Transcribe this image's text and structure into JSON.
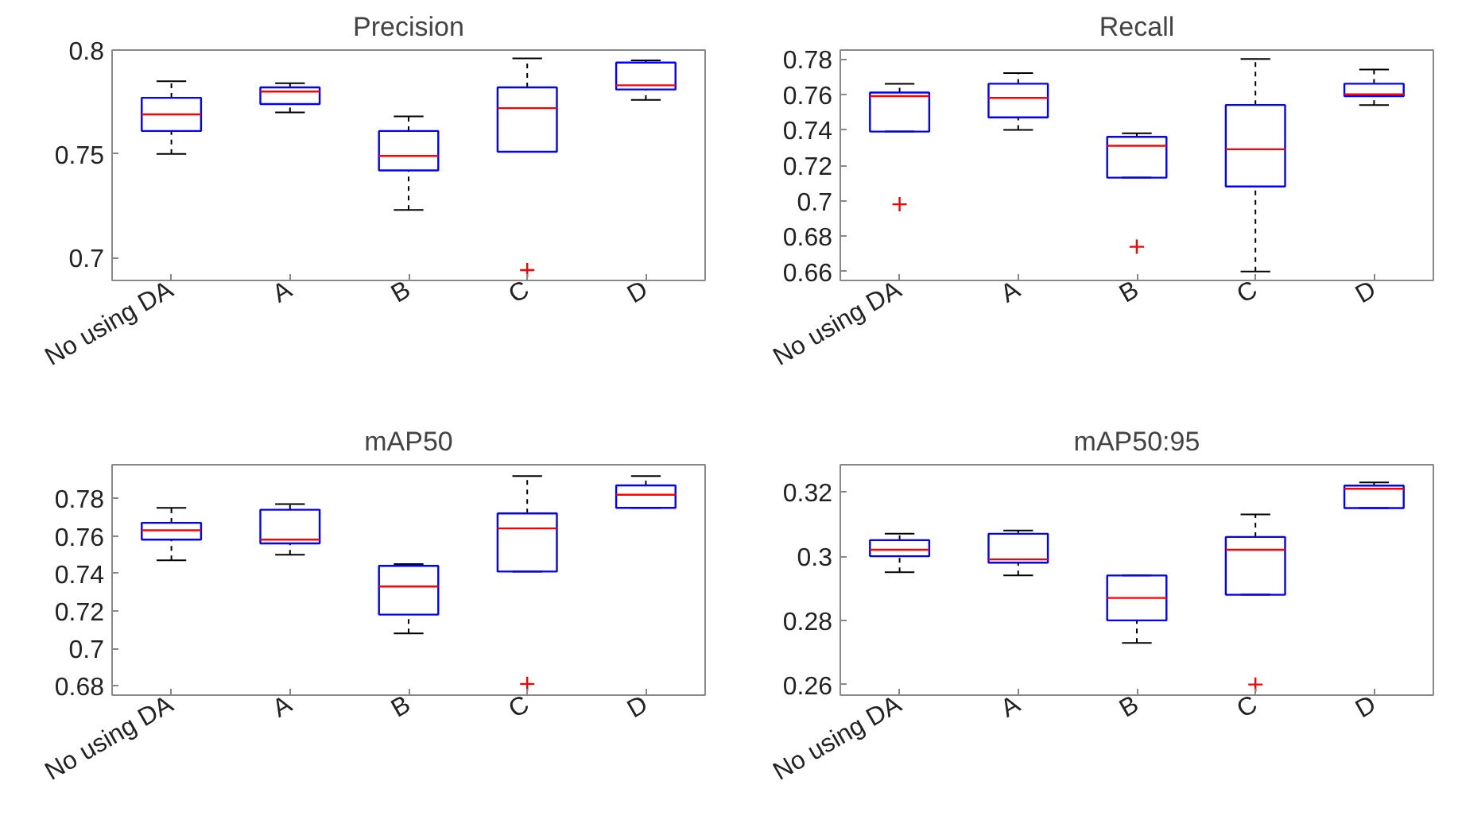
{
  "chart_data": [
    {
      "type": "box",
      "title": "Precision",
      "categories": [
        "No using DA",
        "A",
        "B",
        "C",
        "D"
      ],
      "color": "#0000ff",
      "ylim": [
        0.689,
        0.8
      ],
      "yticks": [
        0.7,
        0.75,
        0.8
      ],
      "grid": false,
      "marker": "cross",
      "boxes": [
        {
          "low": 0.75,
          "q1": 0.761,
          "median": 0.769,
          "q3": 0.777,
          "high": 0.785
        },
        {
          "low": 0.77,
          "q1": 0.774,
          "median": 0.78,
          "q3": 0.782,
          "high": 0.784
        },
        {
          "low": 0.723,
          "q1": 0.742,
          "median": 0.749,
          "q3": 0.761,
          "high": 0.768
        },
        {
          "low": 0.751,
          "q1": 0.751,
          "median": 0.772,
          "q3": 0.782,
          "high": 0.796,
          "outliers": [
            0.694
          ]
        },
        {
          "low": 0.776,
          "q1": 0.781,
          "median": 0.783,
          "q3": 0.794,
          "high": 0.795
        }
      ]
    },
    {
      "type": "box",
      "title": "Recall",
      "categories": [
        "No using DA",
        "A",
        "B",
        "C",
        "D"
      ],
      "color": "#0000ff",
      "ylim": [
        0.655,
        0.785
      ],
      "yticks": [
        0.66,
        0.68,
        0.7,
        0.72,
        0.74,
        0.76,
        0.78
      ],
      "grid": false,
      "marker": "cross",
      "boxes": [
        {
          "low": 0.739,
          "q1": 0.739,
          "median": 0.759,
          "q3": 0.761,
          "high": 0.766,
          "outliers": [
            0.698
          ]
        },
        {
          "low": 0.74,
          "q1": 0.747,
          "median": 0.758,
          "q3": 0.766,
          "high": 0.772
        },
        {
          "low": 0.713,
          "q1": 0.713,
          "median": 0.731,
          "q3": 0.736,
          "high": 0.738,
          "outliers": [
            0.674
          ]
        },
        {
          "low": 0.66,
          "q1": 0.708,
          "median": 0.729,
          "q3": 0.754,
          "high": 0.78
        },
        {
          "low": 0.754,
          "q1": 0.759,
          "median": 0.76,
          "q3": 0.766,
          "high": 0.774
        }
      ]
    },
    {
      "type": "box",
      "title": "mAP50",
      "categories": [
        "No using DA",
        "A",
        "B",
        "C",
        "D"
      ],
      "color": "#0000ff",
      "ylim": [
        0.675,
        0.798
      ],
      "yticks": [
        0.68,
        0.7,
        0.72,
        0.74,
        0.76,
        0.78
      ],
      "grid": false,
      "marker": "cross",
      "boxes": [
        {
          "low": 0.747,
          "q1": 0.758,
          "median": 0.763,
          "q3": 0.767,
          "high": 0.775
        },
        {
          "low": 0.75,
          "q1": 0.756,
          "median": 0.758,
          "q3": 0.774,
          "high": 0.777
        },
        {
          "low": 0.708,
          "q1": 0.718,
          "median": 0.733,
          "q3": 0.744,
          "high": 0.745
        },
        {
          "low": 0.741,
          "q1": 0.741,
          "median": 0.764,
          "q3": 0.772,
          "high": 0.792,
          "outliers": [
            0.681
          ]
        },
        {
          "low": 0.775,
          "q1": 0.775,
          "median": 0.782,
          "q3": 0.787,
          "high": 0.792
        }
      ]
    },
    {
      "type": "box",
      "title": "mAP50:95",
      "categories": [
        "No using DA",
        "A",
        "B",
        "C",
        "D"
      ],
      "color": "#0000ff",
      "ylim": [
        0.2567,
        0.3285
      ],
      "yticks": [
        0.26,
        0.28,
        0.3,
        0.32
      ],
      "grid": false,
      "marker": "cross",
      "boxes": [
        {
          "low": 0.295,
          "q1": 0.3,
          "median": 0.302,
          "q3": 0.305,
          "high": 0.307
        },
        {
          "low": 0.294,
          "q1": 0.298,
          "median": 0.299,
          "q3": 0.307,
          "high": 0.308
        },
        {
          "low": 0.273,
          "q1": 0.28,
          "median": 0.287,
          "q3": 0.294,
          "high": 0.294
        },
        {
          "low": 0.288,
          "q1": 0.288,
          "median": 0.302,
          "q3": 0.306,
          "high": 0.313,
          "outliers": [
            0.26
          ]
        },
        {
          "low": 0.315,
          "q1": 0.315,
          "median": 0.321,
          "q3": 0.322,
          "high": 0.323
        }
      ]
    }
  ]
}
